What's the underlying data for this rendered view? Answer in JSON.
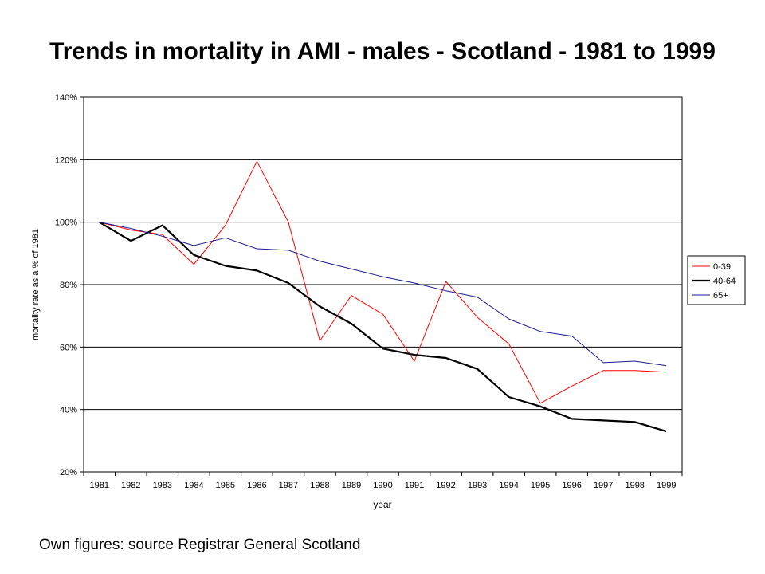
{
  "slide": {
    "caption": "Own figures:  source Registrar General Scotland"
  },
  "chart_data": {
    "type": "line",
    "title": "Trends in mortality in AMI - males - Scotland - 1981 to 1999",
    "xlabel": "year",
    "ylabel": "mortality rate as a % of 1981",
    "x": [
      "1981",
      "1982",
      "1983",
      "1984",
      "1985",
      "1986",
      "1987",
      "1988",
      "1989",
      "1990",
      "1991",
      "1992",
      "1993",
      "1994",
      "1995",
      "1996",
      "1997",
      "1998",
      "1999"
    ],
    "ylim": [
      20,
      140
    ],
    "yticks": [
      20,
      40,
      60,
      80,
      100,
      120,
      140
    ],
    "ytick_labels": [
      "20%",
      "40%",
      "60%",
      "80%",
      "100%",
      "120%",
      "140%"
    ],
    "grid": "horizontal",
    "legend_position": "right",
    "series": [
      {
        "name": "0-39",
        "color": "#ff0000",
        "stroke": "thin",
        "values": [
          100,
          97.5,
          96,
          86.5,
          99,
          119.5,
          100,
          62,
          76.5,
          70.5,
          55.5,
          81,
          69.5,
          61,
          42,
          47.5,
          52.5,
          52.5,
          52
        ]
      },
      {
        "name": "40-64",
        "color": "#000000",
        "stroke": "thick",
        "values": [
          100,
          94,
          99,
          89.5,
          86,
          84.5,
          80.5,
          73,
          67.5,
          59.5,
          57.5,
          56.5,
          53,
          44,
          41,
          37,
          36.5,
          36,
          33
        ]
      },
      {
        "name": "65+",
        "color": "#1a1a8c",
        "stroke": "thin",
        "values": [
          100,
          98,
          95.5,
          92.5,
          95,
          91.5,
          91,
          87.5,
          85,
          82.5,
          80.5,
          78,
          76,
          69,
          65,
          63.5,
          55,
          55.5,
          54
        ]
      }
    ]
  }
}
